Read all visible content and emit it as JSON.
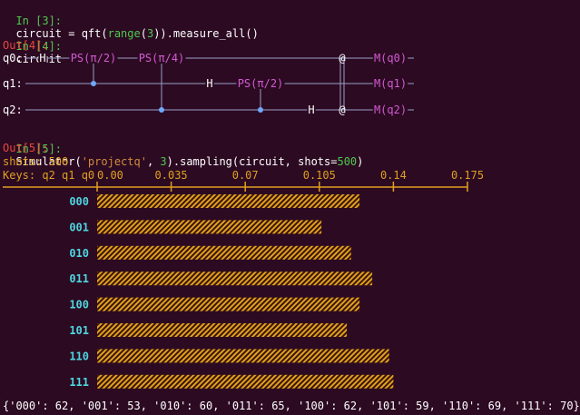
{
  "cells": [
    {
      "prompt": "In [3]:",
      "parts": [
        {
          "t": "circuit = qft(",
          "c": "w"
        },
        {
          "t": "range",
          "c": "g"
        },
        {
          "t": "(",
          "c": "w"
        },
        {
          "t": "3",
          "c": "g"
        },
        {
          "t": ")).measure_all()",
          "c": "w"
        }
      ]
    },
    {
      "prompt": "In [4]:",
      "parts": [
        {
          "t": "circuit",
          "c": "w"
        }
      ]
    },
    {
      "prompt": "In [5]:",
      "parts": [
        {
          "t": "Simulator(",
          "c": "w"
        },
        {
          "t": "'projectq'",
          "c": "s"
        },
        {
          "t": ", ",
          "c": "w"
        },
        {
          "t": "3",
          "c": "g"
        },
        {
          "t": ").sampling(circuit, shots=",
          "c": "w"
        },
        {
          "t": "500",
          "c": "g"
        },
        {
          "t": ")",
          "c": "w"
        }
      ]
    }
  ],
  "outputs": {
    "out4": "Out[4]:",
    "out5": "Out[5]:"
  },
  "circuit": {
    "qubits": [
      "q0:",
      "q1:",
      "q2:"
    ],
    "gates": [
      {
        "label": "H",
        "kind": "single",
        "wire": 0
      },
      {
        "label": "PS(π/2)",
        "kind": "ctrl",
        "wire": 0,
        "control": 1
      },
      {
        "label": "PS(π/4)",
        "kind": "ctrl",
        "wire": 0,
        "control": 2
      },
      {
        "label": "H",
        "kind": "single",
        "wire": 1
      },
      {
        "label": "PS(π/2)",
        "kind": "ctrl",
        "wire": 1,
        "control": 2
      },
      {
        "label": "H",
        "kind": "single",
        "wire": 2
      },
      {
        "label": "@",
        "kind": "swap",
        "wires": [
          0,
          2
        ]
      },
      {
        "label": "M(q0)",
        "kind": "measure",
        "wire": 0
      },
      {
        "label": "M(q1)",
        "kind": "measure",
        "wire": 1
      },
      {
        "label": "M(q2)",
        "kind": "measure",
        "wire": 2
      }
    ]
  },
  "shots_label": "shots: 500",
  "chart_data": {
    "type": "bar",
    "orientation": "horizontal",
    "keys_label": "Keys: q2 q1 q0",
    "xticks": [
      "0.00",
      "0.035",
      "0.07",
      "0.105",
      "0.14",
      "0.175"
    ],
    "xlim": [
      0,
      0.175
    ],
    "categories": [
      "000",
      "001",
      "010",
      "011",
      "100",
      "101",
      "110",
      "111"
    ],
    "counts": [
      62,
      53,
      60,
      65,
      62,
      59,
      69,
      70
    ],
    "values": [
      0.124,
      0.106,
      0.12,
      0.13,
      0.124,
      0.118,
      0.138,
      0.14
    ],
    "bar_color": "#e0a020",
    "hatched": true
  },
  "result_dict": "{'000': 62, '001': 53, '010': 60, '011': 65, '100': 62, '101': 59, '110': 69, '111': 70}",
  "colors": {
    "background": "#2c0a22",
    "prompt": "#4ec94e",
    "out": "#e8473c",
    "gate": "#d25ad2",
    "accent": "#e0a020",
    "key": "#4ed6e0",
    "string": "#d08c3c"
  }
}
